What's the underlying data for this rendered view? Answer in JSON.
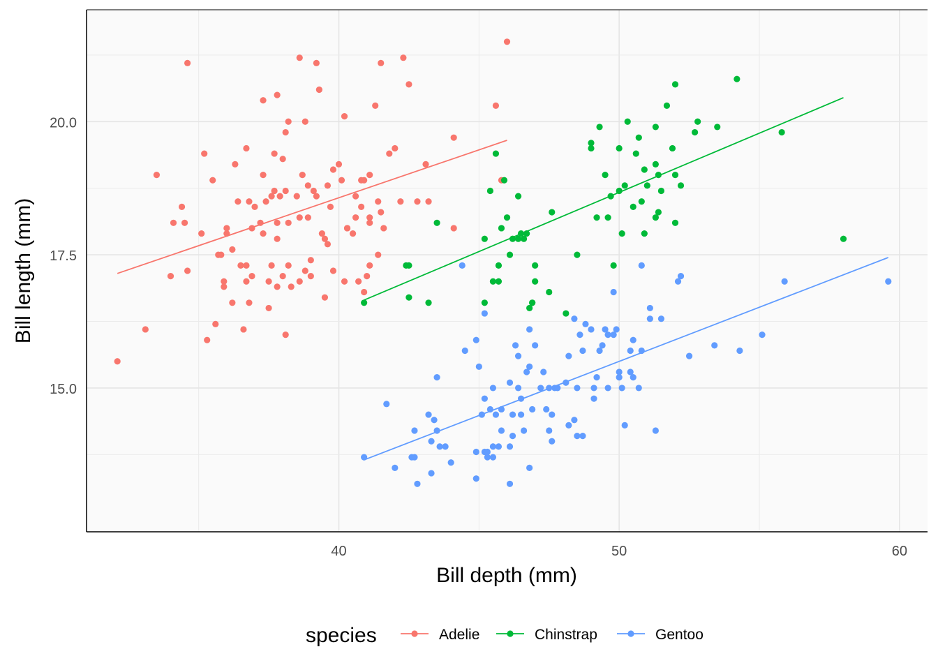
{
  "chart_data": {
    "type": "scatter",
    "xlabel": "Bill depth (mm)",
    "ylabel": "Bill length (mm)",
    "xlim": [
      31,
      61
    ],
    "ylim": [
      12.3,
      22.1
    ],
    "x_ticks": [
      40,
      50,
      60
    ],
    "x_tick_labels": [
      "40",
      "50",
      "60"
    ],
    "y_ticks": [
      15.0,
      17.5,
      20.0
    ],
    "y_tick_labels": [
      "15.0",
      "17.5",
      "20.0"
    ],
    "grid": true,
    "legend": {
      "title": "species",
      "position": "bottom"
    },
    "series": [
      {
        "name": "Adelie",
        "color": "#F8766D",
        "trend": {
          "x": [
            32.1,
            46.0
          ],
          "y": [
            17.15,
            19.65
          ]
        },
        "points": [
          [
            32.1,
            15.5
          ],
          [
            33.1,
            16.1
          ],
          [
            33.5,
            19.0
          ],
          [
            34.0,
            17.1
          ],
          [
            34.1,
            18.1
          ],
          [
            34.4,
            18.4
          ],
          [
            34.5,
            18.1
          ],
          [
            34.6,
            17.2
          ],
          [
            34.6,
            21.1
          ],
          [
            35.1,
            17.9
          ],
          [
            35.2,
            19.4
          ],
          [
            35.3,
            15.9
          ],
          [
            35.5,
            18.9
          ],
          [
            35.6,
            16.2
          ],
          [
            35.7,
            17.5
          ],
          [
            35.8,
            17.5
          ],
          [
            35.9,
            17.0
          ],
          [
            35.9,
            16.9
          ],
          [
            36.0,
            18.0
          ],
          [
            36.2,
            17.6
          ],
          [
            36.2,
            16.6
          ],
          [
            36.3,
            19.2
          ],
          [
            36.4,
            18.5
          ],
          [
            36.5,
            17.3
          ],
          [
            36.6,
            16.1
          ],
          [
            36.7,
            17.0
          ],
          [
            36.7,
            17.3
          ],
          [
            36.7,
            19.5
          ],
          [
            36.8,
            16.6
          ],
          [
            36.9,
            17.1
          ],
          [
            36.9,
            18.0
          ],
          [
            37.0,
            18.4
          ],
          [
            37.2,
            18.1
          ],
          [
            37.3,
            19.0
          ],
          [
            37.3,
            17.9
          ],
          [
            37.4,
            18.5
          ],
          [
            37.5,
            17.0
          ],
          [
            37.5,
            16.5
          ],
          [
            37.6,
            18.6
          ],
          [
            37.7,
            19.4
          ],
          [
            37.8,
            16.9
          ],
          [
            37.8,
            18.1
          ],
          [
            37.8,
            17.8
          ],
          [
            37.8,
            20.5
          ],
          [
            37.9,
            18.6
          ],
          [
            38.0,
            17.1
          ],
          [
            38.0,
            19.3
          ],
          [
            38.1,
            18.7
          ],
          [
            38.1,
            16.0
          ],
          [
            38.1,
            19.8
          ],
          [
            38.2,
            17.3
          ],
          [
            38.2,
            18.1
          ],
          [
            38.2,
            20.0
          ],
          [
            38.3,
            16.9
          ],
          [
            38.5,
            18.6
          ],
          [
            38.6,
            21.2
          ],
          [
            38.6,
            17.0
          ],
          [
            38.7,
            19.0
          ],
          [
            38.8,
            17.2
          ],
          [
            38.8,
            20.0
          ],
          [
            38.9,
            18.2
          ],
          [
            39.0,
            17.1
          ],
          [
            39.1,
            18.7
          ],
          [
            39.2,
            18.6
          ],
          [
            39.2,
            21.1
          ],
          [
            39.3,
            20.6
          ],
          [
            39.5,
            17.8
          ],
          [
            39.6,
            18.8
          ],
          [
            39.6,
            17.7
          ],
          [
            39.7,
            18.4
          ],
          [
            39.8,
            19.1
          ],
          [
            40.1,
            18.9
          ],
          [
            40.2,
            17.0
          ],
          [
            40.2,
            20.1
          ],
          [
            40.3,
            18.0
          ],
          [
            40.5,
            17.9
          ],
          [
            40.6,
            18.6
          ],
          [
            40.7,
            17.0
          ],
          [
            40.8,
            18.9
          ],
          [
            40.9,
            18.9
          ],
          [
            41.0,
            17.1
          ],
          [
            41.1,
            18.2
          ],
          [
            41.1,
            19.0
          ],
          [
            41.3,
            20.3
          ],
          [
            41.4,
            18.5
          ],
          [
            41.5,
            18.3
          ],
          [
            41.6,
            18.0
          ],
          [
            41.8,
            19.4
          ],
          [
            42.0,
            19.5
          ],
          [
            42.2,
            18.5
          ],
          [
            42.5,
            20.7
          ],
          [
            42.8,
            18.5
          ],
          [
            43.1,
            19.2
          ],
          [
            43.2,
            18.5
          ],
          [
            44.1,
            19.7
          ],
          [
            44.1,
            18.0
          ],
          [
            45.6,
            20.3
          ],
          [
            45.8,
            18.9
          ],
          [
            46.0,
            21.5
          ],
          [
            36.0,
            17.9
          ],
          [
            37.6,
            17.3
          ],
          [
            39.5,
            16.7
          ],
          [
            40.9,
            16.8
          ],
          [
            41.5,
            21.1
          ],
          [
            40.0,
            19.2
          ],
          [
            40.8,
            18.4
          ],
          [
            42.3,
            21.2
          ],
          [
            38.9,
            18.8
          ],
          [
            39.0,
            17.4
          ],
          [
            39.8,
            17.2
          ],
          [
            40.3,
            18.0
          ],
          [
            41.1,
            18.1
          ],
          [
            41.4,
            17.5
          ],
          [
            37.3,
            20.4
          ],
          [
            36.8,
            18.5
          ],
          [
            37.7,
            18.7
          ],
          [
            38.6,
            18.2
          ],
          [
            39.4,
            17.9
          ],
          [
            40.6,
            18.2
          ],
          [
            41.1,
            17.3
          ]
        ]
      },
      {
        "name": "Chinstrap",
        "color": "#00BA38",
        "trend": {
          "x": [
            40.9,
            58.0
          ],
          "y": [
            16.65,
            20.45
          ]
        },
        "points": [
          [
            40.9,
            16.6
          ],
          [
            42.4,
            17.3
          ],
          [
            42.5,
            17.3
          ],
          [
            42.5,
            16.7
          ],
          [
            43.2,
            16.6
          ],
          [
            43.5,
            18.1
          ],
          [
            45.2,
            16.6
          ],
          [
            45.2,
            17.8
          ],
          [
            45.4,
            18.7
          ],
          [
            45.5,
            17.0
          ],
          [
            45.6,
            19.4
          ],
          [
            45.7,
            17.0
          ],
          [
            45.7,
            17.3
          ],
          [
            45.9,
            18.9
          ],
          [
            46.0,
            18.2
          ],
          [
            46.1,
            17.5
          ],
          [
            46.2,
            17.8
          ],
          [
            46.4,
            17.8
          ],
          [
            46.4,
            18.6
          ],
          [
            46.5,
            17.9
          ],
          [
            46.6,
            17.8
          ],
          [
            46.7,
            17.9
          ],
          [
            46.8,
            16.5
          ],
          [
            46.9,
            16.6
          ],
          [
            47.0,
            17.3
          ],
          [
            47.5,
            16.8
          ],
          [
            47.6,
            18.3
          ],
          [
            48.1,
            16.4
          ],
          [
            48.5,
            17.5
          ],
          [
            49.0,
            19.5
          ],
          [
            49.2,
            18.2
          ],
          [
            49.5,
            19.0
          ],
          [
            49.6,
            18.2
          ],
          [
            49.7,
            18.6
          ],
          [
            49.8,
            17.3
          ],
          [
            50.0,
            19.5
          ],
          [
            50.1,
            17.9
          ],
          [
            50.2,
            18.8
          ],
          [
            50.3,
            20.0
          ],
          [
            50.5,
            18.4
          ],
          [
            50.6,
            19.4
          ],
          [
            50.7,
            19.7
          ],
          [
            50.8,
            18.5
          ],
          [
            50.9,
            17.9
          ],
          [
            50.9,
            19.1
          ],
          [
            51.0,
            18.8
          ],
          [
            51.3,
            19.9
          ],
          [
            51.3,
            18.2
          ],
          [
            51.4,
            19.0
          ],
          [
            51.5,
            18.7
          ],
          [
            51.7,
            20.3
          ],
          [
            51.9,
            19.5
          ],
          [
            52.0,
            18.1
          ],
          [
            52.0,
            20.7
          ],
          [
            52.2,
            18.8
          ],
          [
            52.7,
            19.8
          ],
          [
            52.8,
            20.0
          ],
          [
            53.5,
            19.9
          ],
          [
            54.2,
            20.8
          ],
          [
            55.8,
            19.8
          ],
          [
            58.0,
            17.8
          ],
          [
            49.0,
            19.6
          ],
          [
            49.3,
            19.9
          ],
          [
            50.0,
            18.7
          ],
          [
            51.3,
            19.2
          ],
          [
            51.4,
            18.3
          ],
          [
            52.0,
            19.0
          ],
          [
            46.9,
            16.6
          ],
          [
            47.0,
            17.0
          ],
          [
            45.8,
            18.0
          ]
        ]
      },
      {
        "name": "Gentoo",
        "color": "#619CFF",
        "trend": {
          "x": [
            40.9,
            59.6
          ],
          "y": [
            13.65,
            17.45
          ]
        },
        "points": [
          [
            40.9,
            13.7
          ],
          [
            41.7,
            14.7
          ],
          [
            42.0,
            13.5
          ],
          [
            42.6,
            13.7
          ],
          [
            42.7,
            13.7
          ],
          [
            42.7,
            14.2
          ],
          [
            42.8,
            13.2
          ],
          [
            43.2,
            14.5
          ],
          [
            43.3,
            13.4
          ],
          [
            43.3,
            14.0
          ],
          [
            43.4,
            14.4
          ],
          [
            43.5,
            14.2
          ],
          [
            43.5,
            15.2
          ],
          [
            43.6,
            13.9
          ],
          [
            43.8,
            13.9
          ],
          [
            44.0,
            13.6
          ],
          [
            44.4,
            17.3
          ],
          [
            44.5,
            15.7
          ],
          [
            44.9,
            13.3
          ],
          [
            44.9,
            13.8
          ],
          [
            45.0,
            15.4
          ],
          [
            45.1,
            14.5
          ],
          [
            45.2,
            13.8
          ],
          [
            45.2,
            14.8
          ],
          [
            45.2,
            16.4
          ],
          [
            45.3,
            13.7
          ],
          [
            45.3,
            13.8
          ],
          [
            45.4,
            14.6
          ],
          [
            45.5,
            13.7
          ],
          [
            45.5,
            15.0
          ],
          [
            45.5,
            13.9
          ],
          [
            45.7,
            13.9
          ],
          [
            45.8,
            14.2
          ],
          [
            45.8,
            14.6
          ],
          [
            46.1,
            13.2
          ],
          [
            46.1,
            15.1
          ],
          [
            46.2,
            14.1
          ],
          [
            46.2,
            14.5
          ],
          [
            46.3,
            15.8
          ],
          [
            46.4,
            15.0
          ],
          [
            46.5,
            14.5
          ],
          [
            46.5,
            14.8
          ],
          [
            46.6,
            14.2
          ],
          [
            46.7,
            15.3
          ],
          [
            46.8,
            13.5
          ],
          [
            46.8,
            15.4
          ],
          [
            46.8,
            16.1
          ],
          [
            46.9,
            14.6
          ],
          [
            47.2,
            15.0
          ],
          [
            47.3,
            15.3
          ],
          [
            47.4,
            14.6
          ],
          [
            47.5,
            14.2
          ],
          [
            47.5,
            15.0
          ],
          [
            47.6,
            14.5
          ],
          [
            47.7,
            15.0
          ],
          [
            47.8,
            15.0
          ],
          [
            48.1,
            15.1
          ],
          [
            48.2,
            14.3
          ],
          [
            48.2,
            15.6
          ],
          [
            48.4,
            14.4
          ],
          [
            48.4,
            16.3
          ],
          [
            48.5,
            14.1
          ],
          [
            48.5,
            15.0
          ],
          [
            48.6,
            16.0
          ],
          [
            48.7,
            14.1
          ],
          [
            48.7,
            15.7
          ],
          [
            48.8,
            16.2
          ],
          [
            49.0,
            16.1
          ],
          [
            49.1,
            14.8
          ],
          [
            49.1,
            15.0
          ],
          [
            49.2,
            15.2
          ],
          [
            49.3,
            15.7
          ],
          [
            49.4,
            15.8
          ],
          [
            49.5,
            16.1
          ],
          [
            49.6,
            15.0
          ],
          [
            49.6,
            16.0
          ],
          [
            49.8,
            16.0
          ],
          [
            49.9,
            16.1
          ],
          [
            50.0,
            15.2
          ],
          [
            50.0,
            15.3
          ],
          [
            50.1,
            15.0
          ],
          [
            50.2,
            14.3
          ],
          [
            50.4,
            15.3
          ],
          [
            50.4,
            15.7
          ],
          [
            50.5,
            15.2
          ],
          [
            50.5,
            15.9
          ],
          [
            50.7,
            15.0
          ],
          [
            50.8,
            15.7
          ],
          [
            51.1,
            16.5
          ],
          [
            51.1,
            16.3
          ],
          [
            51.3,
            14.2
          ],
          [
            51.5,
            16.3
          ],
          [
            52.1,
            17.0
          ],
          [
            52.2,
            17.1
          ],
          [
            52.5,
            15.6
          ],
          [
            53.4,
            15.8
          ],
          [
            54.3,
            15.7
          ],
          [
            55.1,
            16.0
          ],
          [
            55.9,
            17.0
          ],
          [
            59.6,
            17.0
          ],
          [
            49.8,
            16.8
          ],
          [
            50.8,
            17.3
          ],
          [
            46.4,
            15.6
          ],
          [
            47.0,
            15.8
          ],
          [
            47.6,
            14.0
          ],
          [
            44.9,
            15.9
          ],
          [
            45.6,
            14.5
          ],
          [
            46.1,
            13.9
          ]
        ]
      }
    ]
  }
}
